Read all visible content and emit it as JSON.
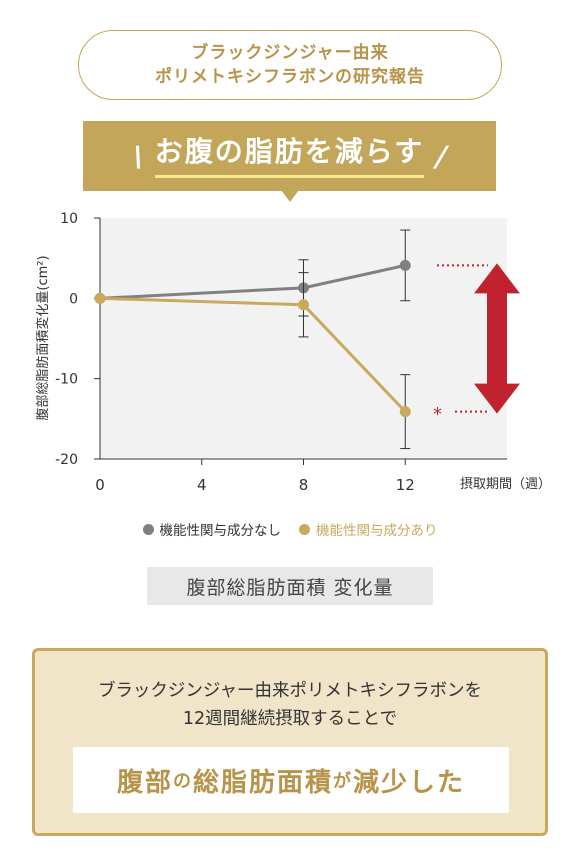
{
  "header": {
    "line1": "ブラックジンジャー由来",
    "line2": "ポリメトキシフラボンの研究報告"
  },
  "banner": {
    "title": "お腹の脂肪を減らす"
  },
  "colors": {
    "gold": "#c4a65a",
    "gray_series": "#808080",
    "gold_series": "#c9a95e",
    "arrow_red": "#c0232f"
  },
  "chart_data": {
    "type": "line",
    "ylabel": "腹部総脂肪面積変化量(cm²)",
    "xlabel": "摂取期間（週）",
    "ylim": [
      -20,
      10
    ],
    "xlim": [
      0,
      16
    ],
    "x_ticks": [
      0,
      4,
      8,
      12
    ],
    "y_ticks": [
      10,
      0,
      -10,
      -20
    ],
    "grid": false,
    "legend_position": "bottom",
    "series": [
      {
        "name": "機能性関与成分なし",
        "color": "#808080",
        "x": [
          0,
          8,
          12
        ],
        "y": [
          0,
          1.3,
          4.1
        ],
        "err": [
          0,
          3.5,
          4.4
        ]
      },
      {
        "name": "機能性関与成分あり",
        "color": "#c9a95e",
        "x": [
          0,
          8,
          12
        ],
        "y": [
          0,
          -0.8,
          -14.1
        ],
        "err": [
          0,
          4.0,
          4.6
        ]
      }
    ],
    "annotations": [
      "*"
    ]
  },
  "caption": "腹部総脂肪面積 変化量",
  "summary": {
    "line1": "ブラックジンジャー由来ポリメトキシフラボンを",
    "line2": "12週間継続摂取することで",
    "highlight_a": "腹部",
    "highlight_b": "の",
    "highlight_c": "総脂肪面積",
    "highlight_d": "が",
    "highlight_e": "減少した"
  }
}
